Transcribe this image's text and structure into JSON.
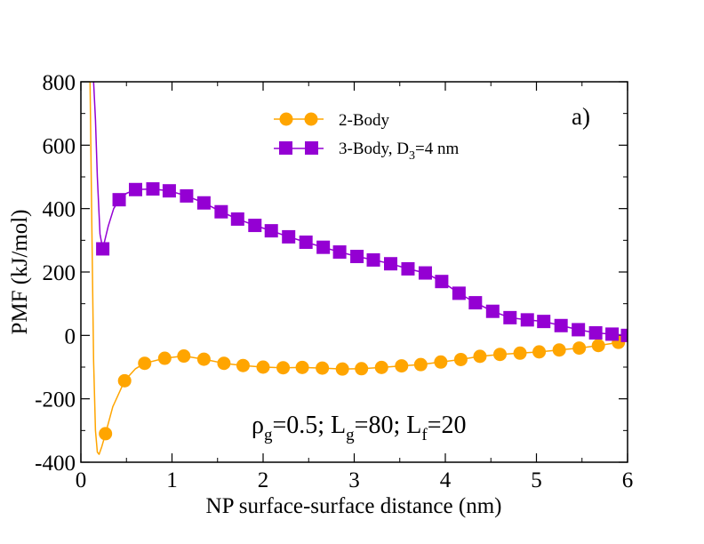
{
  "chart_data": {
    "type": "line",
    "panel_label": "a)",
    "xlabel": "NP surface-surface distance (nm)",
    "ylabel": "PMF (kJ/mol)",
    "xlim": [
      0,
      6
    ],
    "ylim": [
      -400,
      800
    ],
    "xticks": [
      0,
      1,
      2,
      3,
      4,
      5,
      6
    ],
    "yticks": [
      -400,
      -200,
      0,
      200,
      400,
      600,
      800
    ],
    "xtick_labels": [
      "0",
      "1",
      "2",
      "3",
      "4",
      "5",
      "6"
    ],
    "ytick_labels": [
      "-400",
      "-200",
      "0",
      "200",
      "400",
      "600",
      "800"
    ],
    "legend_position": "top-center",
    "annotation": {
      "rho": "ρ",
      "rho_sub": "g",
      "rho_rest": "=0.5; L",
      "lg_sub": "g",
      "lg_rest": "=80; L",
      "lf_sub": "f",
      "lf_rest": "=20"
    },
    "series": [
      {
        "name": "2-Body",
        "legend_main": "2-Body",
        "color": "#ffa500",
        "marker": "circle",
        "markers": [
          {
            "x": 0.27,
            "y": -310
          },
          {
            "x": 0.48,
            "y": -143
          },
          {
            "x": 0.7,
            "y": -88
          },
          {
            "x": 0.92,
            "y": -72
          },
          {
            "x": 1.13,
            "y": -65
          },
          {
            "x": 1.35,
            "y": -75
          },
          {
            "x": 1.57,
            "y": -88
          },
          {
            "x": 1.78,
            "y": -95
          },
          {
            "x": 2.0,
            "y": -100
          },
          {
            "x": 2.22,
            "y": -102
          },
          {
            "x": 2.43,
            "y": -101
          },
          {
            "x": 2.65,
            "y": -103
          },
          {
            "x": 2.87,
            "y": -106
          },
          {
            "x": 3.08,
            "y": -105
          },
          {
            "x": 3.3,
            "y": -101
          },
          {
            "x": 3.52,
            "y": -96
          },
          {
            "x": 3.73,
            "y": -92
          },
          {
            "x": 3.95,
            "y": -84
          },
          {
            "x": 4.17,
            "y": -76
          },
          {
            "x": 4.38,
            "y": -66
          },
          {
            "x": 4.6,
            "y": -60
          },
          {
            "x": 4.82,
            "y": -56
          },
          {
            "x": 5.03,
            "y": -52
          },
          {
            "x": 5.25,
            "y": -46
          },
          {
            "x": 5.47,
            "y": -40
          },
          {
            "x": 5.68,
            "y": -32
          },
          {
            "x": 5.9,
            "y": -22
          }
        ],
        "curve": [
          {
            "x": 0.1,
            "y": 800
          },
          {
            "x": 0.12,
            "y": 350
          },
          {
            "x": 0.14,
            "y": -80
          },
          {
            "x": 0.16,
            "y": -300
          },
          {
            "x": 0.18,
            "y": -368
          },
          {
            "x": 0.2,
            "y": -375
          },
          {
            "x": 0.23,
            "y": -350
          },
          {
            "x": 0.27,
            "y": -310
          },
          {
            "x": 0.35,
            "y": -225
          },
          {
            "x": 0.48,
            "y": -143
          },
          {
            "x": 0.6,
            "y": -105
          },
          {
            "x": 0.7,
            "y": -88
          },
          {
            "x": 0.92,
            "y": -72
          },
          {
            "x": 1.13,
            "y": -65
          },
          {
            "x": 1.35,
            "y": -75
          },
          {
            "x": 1.57,
            "y": -88
          },
          {
            "x": 1.78,
            "y": -95
          },
          {
            "x": 2.0,
            "y": -100
          },
          {
            "x": 2.22,
            "y": -102
          },
          {
            "x": 2.43,
            "y": -101
          },
          {
            "x": 2.65,
            "y": -103
          },
          {
            "x": 2.87,
            "y": -106
          },
          {
            "x": 3.08,
            "y": -105
          },
          {
            "x": 3.3,
            "y": -101
          },
          {
            "x": 3.52,
            "y": -96
          },
          {
            "x": 3.73,
            "y": -92
          },
          {
            "x": 3.95,
            "y": -84
          },
          {
            "x": 4.17,
            "y": -76
          },
          {
            "x": 4.38,
            "y": -66
          },
          {
            "x": 4.6,
            "y": -60
          },
          {
            "x": 4.82,
            "y": -56
          },
          {
            "x": 5.03,
            "y": -52
          },
          {
            "x": 5.25,
            "y": -46
          },
          {
            "x": 5.47,
            "y": -40
          },
          {
            "x": 5.68,
            "y": -32
          },
          {
            "x": 5.9,
            "y": -22
          },
          {
            "x": 6.0,
            "y": -18
          }
        ]
      },
      {
        "name": "3-Body, D3=4 nm",
        "legend_main": "3-Body, D",
        "legend_sub": "3",
        "legend_tail": "=4 nm",
        "color": "#9400d3",
        "marker": "square",
        "markers": [
          {
            "x": 0.24,
            "y": 273
          },
          {
            "x": 0.42,
            "y": 428
          },
          {
            "x": 0.6,
            "y": 460
          },
          {
            "x": 0.79,
            "y": 462
          },
          {
            "x": 0.97,
            "y": 456
          },
          {
            "x": 1.16,
            "y": 440
          },
          {
            "x": 1.35,
            "y": 418
          },
          {
            "x": 1.54,
            "y": 390
          },
          {
            "x": 1.72,
            "y": 367
          },
          {
            "x": 1.91,
            "y": 347
          },
          {
            "x": 2.09,
            "y": 330
          },
          {
            "x": 2.28,
            "y": 311
          },
          {
            "x": 2.47,
            "y": 294
          },
          {
            "x": 2.66,
            "y": 278
          },
          {
            "x": 2.84,
            "y": 263
          },
          {
            "x": 3.03,
            "y": 249
          },
          {
            "x": 3.21,
            "y": 238
          },
          {
            "x": 3.4,
            "y": 226
          },
          {
            "x": 3.59,
            "y": 210
          },
          {
            "x": 3.78,
            "y": 197
          },
          {
            "x": 3.96,
            "y": 170
          },
          {
            "x": 4.15,
            "y": 133
          },
          {
            "x": 4.33,
            "y": 103
          },
          {
            "x": 4.52,
            "y": 76
          },
          {
            "x": 4.71,
            "y": 56
          },
          {
            "x": 4.9,
            "y": 49
          },
          {
            "x": 5.08,
            "y": 44
          },
          {
            "x": 5.27,
            "y": 31
          },
          {
            "x": 5.46,
            "y": 18
          },
          {
            "x": 5.65,
            "y": 8
          },
          {
            "x": 5.83,
            "y": 4
          },
          {
            "x": 6.0,
            "y": 0
          }
        ],
        "curve": [
          {
            "x": 0.14,
            "y": 800
          },
          {
            "x": 0.16,
            "y": 680
          },
          {
            "x": 0.18,
            "y": 500
          },
          {
            "x": 0.21,
            "y": 320
          },
          {
            "x": 0.24,
            "y": 273
          },
          {
            "x": 0.3,
            "y": 345
          },
          {
            "x": 0.36,
            "y": 400
          },
          {
            "x": 0.42,
            "y": 428
          },
          {
            "x": 0.5,
            "y": 448
          },
          {
            "x": 0.6,
            "y": 460
          },
          {
            "x": 0.79,
            "y": 462
          },
          {
            "x": 0.97,
            "y": 456
          },
          {
            "x": 1.16,
            "y": 440
          },
          {
            "x": 1.35,
            "y": 418
          },
          {
            "x": 1.54,
            "y": 390
          },
          {
            "x": 1.72,
            "y": 367
          },
          {
            "x": 1.91,
            "y": 347
          },
          {
            "x": 2.09,
            "y": 330
          },
          {
            "x": 2.28,
            "y": 311
          },
          {
            "x": 2.47,
            "y": 294
          },
          {
            "x": 2.66,
            "y": 278
          },
          {
            "x": 2.84,
            "y": 263
          },
          {
            "x": 3.03,
            "y": 249
          },
          {
            "x": 3.21,
            "y": 238
          },
          {
            "x": 3.4,
            "y": 226
          },
          {
            "x": 3.59,
            "y": 210
          },
          {
            "x": 3.78,
            "y": 197
          },
          {
            "x": 3.96,
            "y": 170
          },
          {
            "x": 4.15,
            "y": 133
          },
          {
            "x": 4.33,
            "y": 103
          },
          {
            "x": 4.52,
            "y": 76
          },
          {
            "x": 4.71,
            "y": 56
          },
          {
            "x": 4.9,
            "y": 49
          },
          {
            "x": 5.08,
            "y": 44
          },
          {
            "x": 5.27,
            "y": 31
          },
          {
            "x": 5.46,
            "y": 18
          },
          {
            "x": 5.65,
            "y": 8
          },
          {
            "x": 5.83,
            "y": 4
          },
          {
            "x": 6.0,
            "y": 0
          }
        ]
      }
    ]
  }
}
